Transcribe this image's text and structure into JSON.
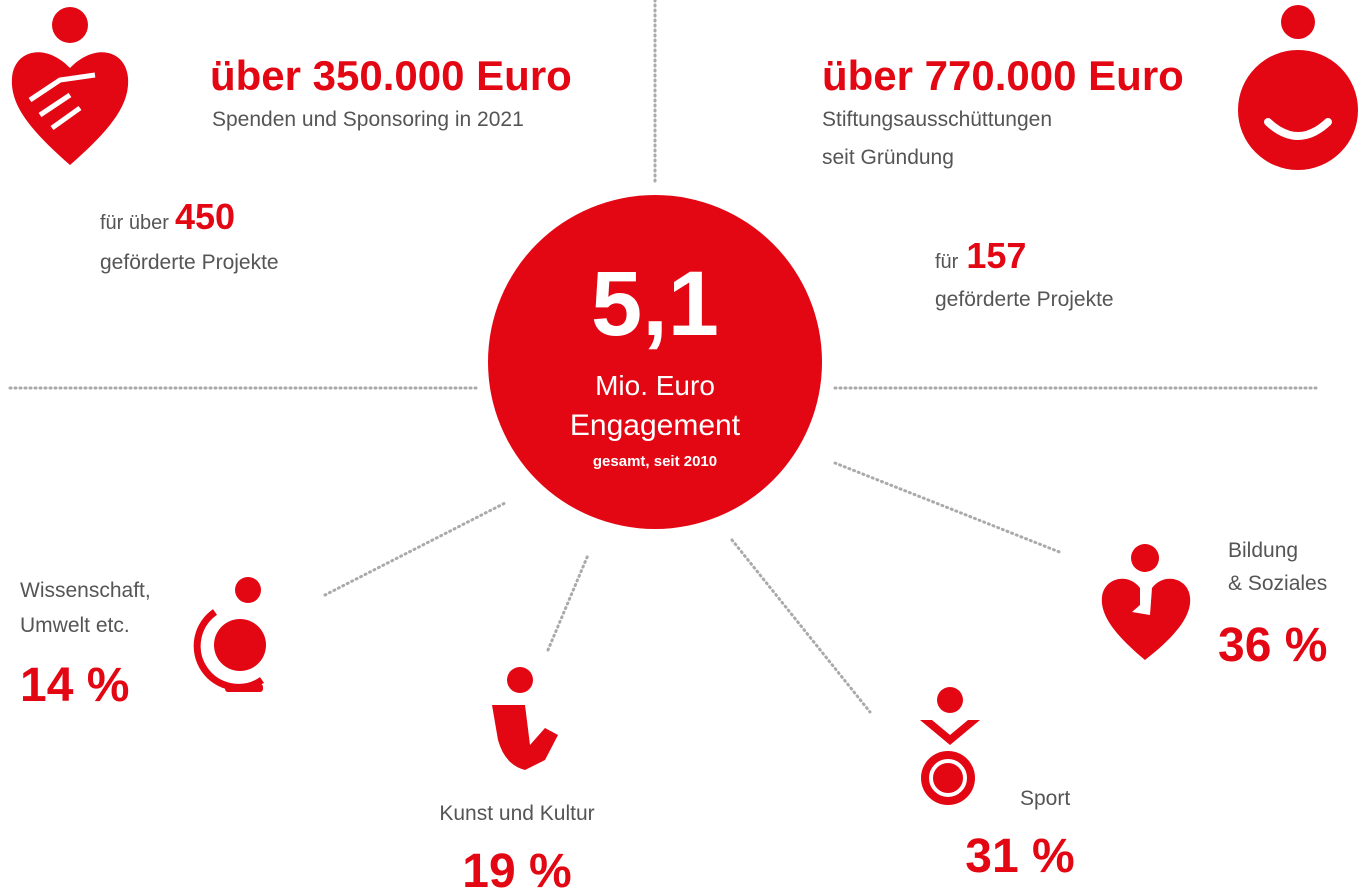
{
  "left_top": {
    "amount": "über 350.000 Euro",
    "description": "Spenden und Sponsoring in 2021",
    "projects_prefix": "für über",
    "projects_count": "450",
    "projects_suffix": "geförderte Projekte"
  },
  "right_top": {
    "amount": "über 770.000 Euro",
    "description_lines": [
      "Stiftungsausschüttungen",
      "seit Gründung"
    ],
    "projects_prefix": "für",
    "projects_count": "157",
    "projects_suffix": "geförderte Projekte"
  },
  "center": {
    "value": "5,1",
    "unit": "Mio. Euro",
    "label": "Engagement",
    "note": "gesamt, seit 2010"
  },
  "categories": [
    {
      "label_lines": [
        "Wissenschaft,",
        "Umwelt etc."
      ],
      "share": "14 %"
    },
    {
      "label_lines": [
        "Kunst und Kultur"
      ],
      "share": "19 %"
    },
    {
      "label_lines": [
        "Sport"
      ],
      "share": "31 %"
    },
    {
      "label_lines": [
        "Bildung",
        "& Soziales"
      ],
      "share": "36 %"
    }
  ]
}
